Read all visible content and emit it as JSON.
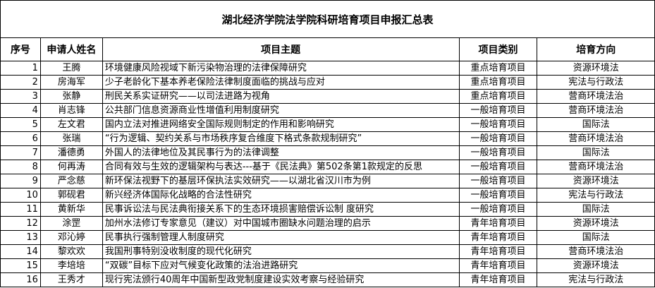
{
  "title": "湖北经济学院法学院科研培育项目申报汇总表",
  "headers": [
    "序号",
    "申请人姓名",
    "项目主题",
    "项目类别",
    "培育方向"
  ],
  "rows": [
    {
      "no": "1",
      "name": "王腾",
      "topic": "环境健康风险视域下新污染物治理的法律保障研究",
      "type": "重点培育项目",
      "direction": "资源环境法"
    },
    {
      "no": "2",
      "name": "房海军",
      "topic": "少子老龄化下基本养老保险法律制度面临的挑战与应对",
      "type": "重点培育项目",
      "direction": "宪法与行政法"
    },
    {
      "no": "3",
      "name": "张静",
      "topic": "刑民关系实证研究——以司法进路为视角",
      "type": "重点培育项目",
      "direction": "营商环境法治"
    },
    {
      "no": "4",
      "name": "肖志锋",
      "topic": "公共部门信息资源商业性增值利用制度研究",
      "type": "一般培育项目",
      "direction": "营商环境法治"
    },
    {
      "no": "5",
      "name": "左文君",
      "topic": "国内立法对推进网络安全国际规则制定的作用和影响研究",
      "type": "一般培育项目",
      "direction": "国际法"
    },
    {
      "no": "6",
      "name": "张瑞",
      "topic": "“行为逻辑、契约关系与市场秩序复合维度下格式条款规制研究”",
      "type": "一般培育项目",
      "direction": "营商环境法治"
    },
    {
      "no": "7",
      "name": "潘德勇",
      "topic": "外国人的法律地位及其民事行为的法律调整",
      "type": "一般培育项目",
      "direction": "国际法"
    },
    {
      "no": "8",
      "name": "何再涛",
      "topic": "合同有效与生效的逻辑架构与表达---基于《民法典》第502条第1款规定的反思",
      "type": "一般培育项目",
      "direction": "营商环境法治"
    },
    {
      "no": "9",
      "name": "严念慈",
      "topic": "新环保法视野下的基层环保执法实效研究——以湖北省汉川市为例",
      "type": "一般培育项目",
      "direction": "资源环境法"
    },
    {
      "no": "10",
      "name": "郭砚君",
      "topic": "新兴经济体国际化战略的合法性研究",
      "type": "一般培育项目",
      "direction": "宪法与行政法"
    },
    {
      "no": "11",
      "name": "黄新华",
      "topic": "民事诉讼法与民法典衔接关系下的生态环境损害赔偿诉讼制  度研究",
      "type": "一般培育项目",
      "direction": "国际法"
    },
    {
      "no": "12",
      "name": "涂罡",
      "topic": "加州水法修订专家意见（建议）对中国城市圈缺水问题治理的启示",
      "type": "青年培育项目",
      "direction": "资源环境法"
    },
    {
      "no": "13",
      "name": "邓沁婷",
      "topic": "民事执行强制管理人制度研究",
      "type": "青年培育项目",
      "direction": "国际法"
    },
    {
      "no": "14",
      "name": "黎欢欢",
      "topic": "我国刑事特别没收制度的现代化研究",
      "type": "青年培育项目",
      "direction": "营商环境法治"
    },
    {
      "no": "15",
      "name": "李培培",
      "topic": "“双碳”目标下应对气候变化政策的法治进路研究",
      "type": "青年培育项目",
      "direction": "资源环境法"
    },
    {
      "no": "16",
      "name": "王秀才",
      "topic": "现行宪法颁行40周年中国新型政党制度建设实效考察与经验研究",
      "type": "青年培育项目",
      "direction": "宪法与行政法"
    }
  ]
}
